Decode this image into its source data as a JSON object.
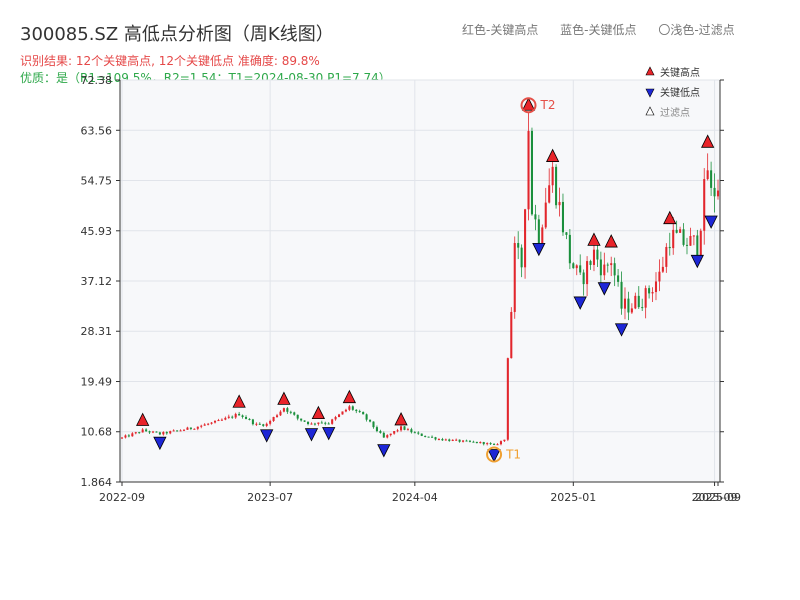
{
  "title": "300085.SZ 高低点分析图（周K线图）",
  "summary_line": "识别结果: 12个关键高点, 12个关键低点   准确度: 89.8%",
  "quality_line": "优质：是（R1=109.5%，R2=1.54；T1=2024-08-30 P1=7.74）",
  "top_legend": [
    "红色-关键高点",
    "蓝色-关键低点",
    "〇浅色-过滤点"
  ],
  "colors": {
    "up": "#e2262c",
    "down": "#1a8f3c",
    "high_marker": "#e8242a",
    "low_marker": "#1d27d6",
    "highlight_ring": "#f0a030",
    "t2_ring": "#e55048",
    "plot_bg": "#f7f8fa",
    "grid": "#e1e4ea"
  },
  "chart_data": {
    "type": "candlestick",
    "yticks": [
      "1.864",
      "10.68",
      "19.49",
      "28.31",
      "37.12",
      "45.93",
      "54.75",
      "63.56",
      "72.38"
    ],
    "ylim": [
      1.864,
      72.38
    ],
    "xticks": [
      {
        "label": "2022-09",
        "week": 0
      },
      {
        "label": "2023-07",
        "week": 43
      },
      {
        "label": "2024-04",
        "week": 85
      },
      {
        "label": "2025-01",
        "week": 131
      },
      {
        "label": "2025-09",
        "week": 172
      }
    ],
    "x_end_label": "2025-09",
    "weeks": 174,
    "legend": [
      {
        "label": "关键高点",
        "kind": "high"
      },
      {
        "label": "关键低点",
        "kind": "low"
      },
      {
        "label": "过滤点",
        "kind": "filtered"
      }
    ],
    "annotations": [
      {
        "label": "T2",
        "week": 118,
        "value": 66.9,
        "kind": "ring-high"
      },
      {
        "label": "T1",
        "week": 108,
        "value": 7.74,
        "kind": "ring-low"
      }
    ],
    "key_highs": [
      {
        "week": 6,
        "value": 11.6
      },
      {
        "week": 34,
        "value": 14.8
      },
      {
        "week": 47,
        "value": 15.3
      },
      {
        "week": 57,
        "value": 12.8
      },
      {
        "week": 66,
        "value": 15.6
      },
      {
        "week": 81,
        "value": 11.7
      },
      {
        "week": 118,
        "value": 66.9
      },
      {
        "week": 125,
        "value": 57.9
      },
      {
        "week": 137,
        "value": 43.2
      },
      {
        "week": 142,
        "value": 42.9
      },
      {
        "week": 159,
        "value": 47.0
      },
      {
        "week": 170,
        "value": 60.4
      }
    ],
    "key_lows": [
      {
        "week": 11,
        "value": 9.9
      },
      {
        "week": 42,
        "value": 11.2
      },
      {
        "week": 55,
        "value": 11.4
      },
      {
        "week": 60,
        "value": 11.6
      },
      {
        "week": 76,
        "value": 8.6
      },
      {
        "week": 108,
        "value": 7.74
      },
      {
        "week": 121,
        "value": 43.9
      },
      {
        "week": 133,
        "value": 34.5
      },
      {
        "week": 140,
        "value": 37.0
      },
      {
        "week": 145,
        "value": 29.8
      },
      {
        "week": 167,
        "value": 41.8
      },
      {
        "week": 171,
        "value": 48.7
      }
    ],
    "anchors": [
      [
        0,
        9.6
      ],
      [
        6,
        10.9
      ],
      [
        11,
        10.3
      ],
      [
        20,
        11.3
      ],
      [
        28,
        12.5
      ],
      [
        34,
        13.8
      ],
      [
        39,
        11.9
      ],
      [
        42,
        12.0
      ],
      [
        47,
        14.9
      ],
      [
        51,
        13.0
      ],
      [
        55,
        12.0
      ],
      [
        57,
        12.4
      ],
      [
        60,
        12.2
      ],
      [
        66,
        15.0
      ],
      [
        70,
        13.5
      ],
      [
        76,
        9.6
      ],
      [
        81,
        11.4
      ],
      [
        86,
        10.2
      ],
      [
        92,
        9.4
      ],
      [
        100,
        8.9
      ],
      [
        105,
        8.7
      ],
      [
        108,
        8.3
      ],
      [
        111,
        9.3
      ],
      [
        112,
        24.0
      ],
      [
        113,
        32.0
      ],
      [
        114,
        42.0
      ],
      [
        116,
        40.0
      ],
      [
        118,
        64.0
      ],
      [
        119,
        50.0
      ],
      [
        121,
        45.0
      ],
      [
        123,
        52.0
      ],
      [
        125,
        56.0
      ],
      [
        127,
        50.0
      ],
      [
        130,
        41.0
      ],
      [
        133,
        37.0
      ],
      [
        137,
        42.0
      ],
      [
        140,
        39.0
      ],
      [
        142,
        41.0
      ],
      [
        145,
        32.5
      ],
      [
        148,
        33.0
      ],
      [
        152,
        34.5
      ],
      [
        156,
        38.0
      ],
      [
        159,
        45.0
      ],
      [
        163,
        44.0
      ],
      [
        167,
        43.5
      ],
      [
        170,
        57.0
      ],
      [
        171,
        52.0
      ],
      [
        173,
        54.0
      ]
    ]
  }
}
